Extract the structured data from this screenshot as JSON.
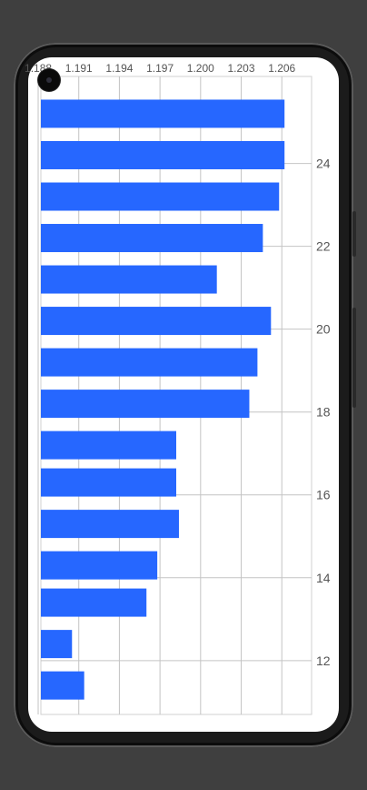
{
  "chart_data": {
    "type": "bar",
    "orientation": "horizontal",
    "title": "",
    "xlabel": "",
    "ylabel": "",
    "x_axis_position": "top",
    "y_axis_position": "right",
    "xlim": [
      1.1882,
      1.2082
    ],
    "ylim": [
      10.7,
      26.1
    ],
    "x_ticks": [
      1.188,
      1.191,
      1.194,
      1.197,
      1.2,
      1.203,
      1.206
    ],
    "x_tick_labels": [
      "1.188",
      "1.191",
      "1.194",
      "1.197",
      "1.200",
      "1.203",
      "1.206"
    ],
    "y_ticks": [
      12,
      14,
      16,
      18,
      20,
      22,
      24
    ],
    "y_tick_labels": [
      "12",
      "14",
      "16",
      "18",
      "20",
      "22",
      "24"
    ],
    "grid": true,
    "bar_color": "#2667ff",
    "bars": [
      {
        "y": 25.2,
        "value": 1.2062
      },
      {
        "y": 24.2,
        "value": 1.2062
      },
      {
        "y": 23.2,
        "value": 1.2058
      },
      {
        "y": 22.2,
        "value": 1.2046
      },
      {
        "y": 21.2,
        "value": 1.2012
      },
      {
        "y": 20.2,
        "value": 1.2052
      },
      {
        "y": 19.2,
        "value": 1.2042
      },
      {
        "y": 18.2,
        "value": 1.2036
      },
      {
        "y": 17.2,
        "value": 1.1982
      },
      {
        "y": 16.3,
        "value": 1.1982
      },
      {
        "y": 15.3,
        "value": 1.1984
      },
      {
        "y": 14.3,
        "value": 1.1968
      },
      {
        "y": 13.4,
        "value": 1.196
      },
      {
        "y": 12.4,
        "value": 1.1905
      },
      {
        "y": 11.4,
        "value": 1.1914
      }
    ]
  }
}
